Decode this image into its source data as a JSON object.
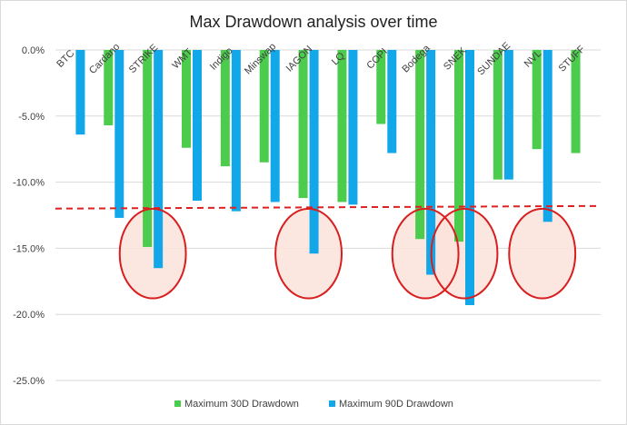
{
  "chart_data": {
    "type": "bar",
    "title": "Max Drawdown analysis over time",
    "categories": [
      "BTC",
      "Cardano",
      "STRIKE",
      "WMT",
      "Indigo",
      "Minswap",
      "IAGON",
      "LQ",
      "COPI",
      "Bodega",
      "SNEK",
      "SUNDAE",
      "NVL",
      "STUFF"
    ],
    "series": [
      {
        "name": "Maximum 30D Drawdown",
        "color": "#4ccc4c",
        "values": [
          0,
          -5.7,
          -14.9,
          -7.4,
          -8.8,
          -8.5,
          -11.2,
          -11.5,
          -5.6,
          -14.3,
          -14.5,
          -9.8,
          -7.5,
          -7.8
        ]
      },
      {
        "name": "Maximum 90D Drawdown",
        "color": "#12a7e8",
        "values": [
          -6.4,
          -12.7,
          -16.5,
          -11.4,
          -12.2,
          -11.5,
          -15.4,
          -11.7,
          -7.8,
          -17.0,
          -19.3,
          -9.8,
          -13.0,
          0
        ]
      }
    ],
    "ylim": [
      -25,
      0
    ],
    "yticks": [
      0,
      -5,
      -10,
      -15,
      -20,
      -25
    ],
    "ytick_labels": [
      "0.0%",
      "-5.0%",
      "-10.0%",
      "-15.0%",
      "-20.0%",
      "-25.0%"
    ],
    "threshold_line": {
      "from": -12.0,
      "to": -11.8,
      "color": "#e02020",
      "style": "dashed"
    },
    "highlight_circles": {
      "color": "#d81e1e",
      "fill": "#fbe3da",
      "around": [
        "STRIKE",
        "IAGON",
        "Bodega",
        "SNEK",
        "NVL"
      ],
      "y_center": -15.4
    },
    "legend_position": "bottom",
    "grid": true
  }
}
